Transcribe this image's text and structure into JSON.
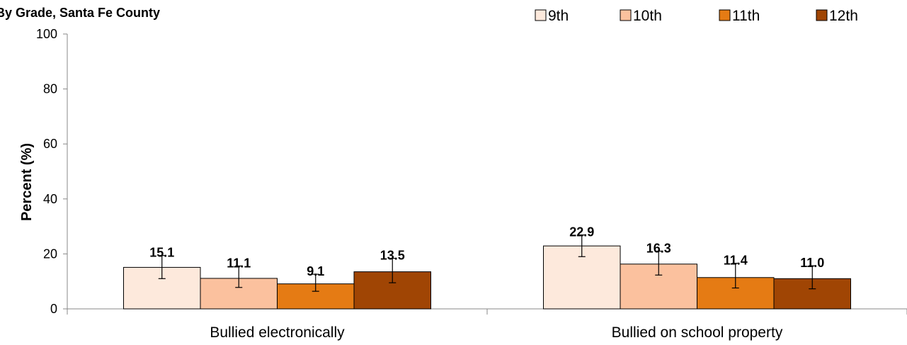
{
  "chart_data": {
    "type": "bar",
    "title": "By Grade, Santa Fe County",
    "ylabel": "Percent (%)",
    "xlabel": "",
    "ylim": [
      0,
      100
    ],
    "yticks": [
      0,
      20,
      40,
      60,
      80,
      100
    ],
    "grid": false,
    "legend_position": "top-right",
    "categories": [
      "Bullied electronically",
      "Bullied on school property"
    ],
    "series": [
      {
        "name": "9th",
        "color": "#FDE9DC",
        "values": [
          15.1,
          22.9
        ],
        "value_labels": [
          "15.1",
          "22.9"
        ],
        "err_low": [
          11.0,
          19.0
        ],
        "err_high": [
          19.4,
          26.9
        ]
      },
      {
        "name": "10th",
        "color": "#FBC19E",
        "values": [
          11.1,
          16.3
        ],
        "value_labels": [
          "11.1",
          "16.3"
        ],
        "err_low": [
          7.8,
          12.3
        ],
        "err_high": [
          15.6,
          21.0
        ]
      },
      {
        "name": "11th",
        "color": "#E57B14",
        "values": [
          9.1,
          11.4
        ],
        "value_labels": [
          "9.1",
          "11.4"
        ],
        "err_low": [
          6.4,
          7.6
        ],
        "err_high": [
          12.6,
          16.6
        ]
      },
      {
        "name": "12th",
        "color": "#A04504",
        "values": [
          13.5,
          11.0
        ],
        "value_labels": [
          "13.5",
          "11.0"
        ],
        "err_low": [
          9.5,
          7.3
        ],
        "err_high": [
          18.4,
          15.7
        ]
      }
    ]
  }
}
